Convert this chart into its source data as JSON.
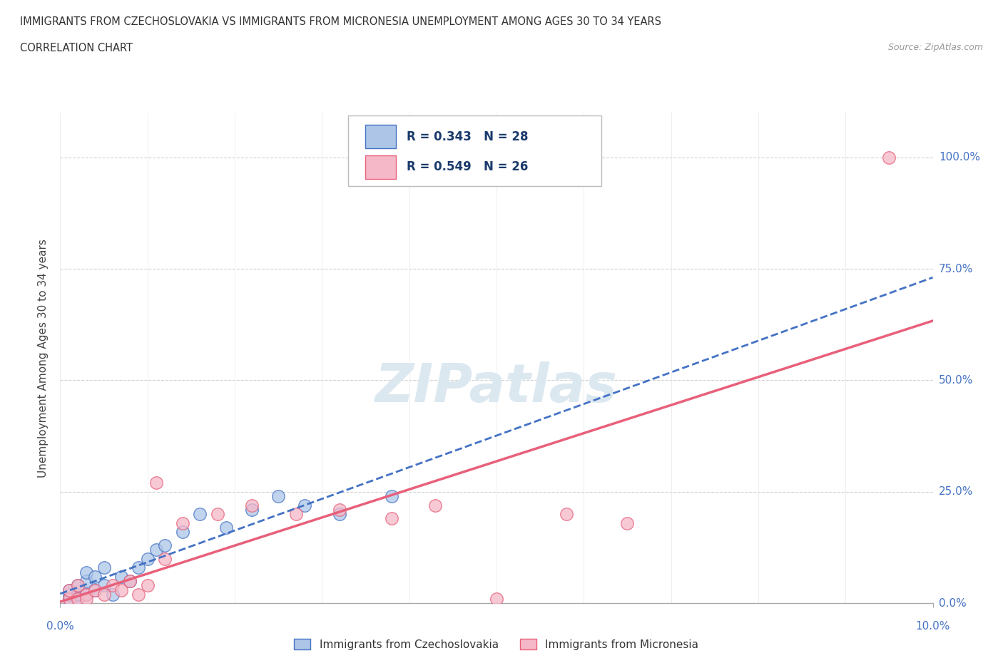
{
  "title_line1": "IMMIGRANTS FROM CZECHOSLOVAKIA VS IMMIGRANTS FROM MICRONESIA UNEMPLOYMENT AMONG AGES 30 TO 34 YEARS",
  "title_line2": "CORRELATION CHART",
  "source_text": "Source: ZipAtlas.com",
  "ylabel": "Unemployment Among Ages 30 to 34 years",
  "xmin": 0.0,
  "xmax": 0.1,
  "ymin": 0.0,
  "ymax": 1.1,
  "yticks": [
    0.0,
    0.25,
    0.5,
    0.75,
    1.0
  ],
  "ytick_labels": [
    "0.0%",
    "25.0%",
    "50.0%",
    "75.0%",
    "100.0%"
  ],
  "legend_r1": "R = 0.343   N = 28",
  "legend_r2": "R = 0.549   N = 26",
  "color_czech": "#adc6e8",
  "color_micronesia": "#f5b8c8",
  "line_color_czech": "#4472c4",
  "line_color_micronesia": "#e8607a",
  "watermark_color": "#dce8f0",
  "background_color": "#ffffff",
  "czech_x": [
    0.001,
    0.001,
    0.001,
    0.002,
    0.002,
    0.002,
    0.003,
    0.003,
    0.003,
    0.004,
    0.004,
    0.005,
    0.005,
    0.006,
    0.007,
    0.008,
    0.009,
    0.01,
    0.011,
    0.012,
    0.014,
    0.016,
    0.019,
    0.022,
    0.025,
    0.028,
    0.032,
    0.038
  ],
  "czech_y": [
    0.01,
    0.02,
    0.03,
    0.01,
    0.02,
    0.04,
    0.02,
    0.05,
    0.07,
    0.03,
    0.06,
    0.04,
    0.08,
    0.02,
    0.06,
    0.05,
    0.08,
    0.1,
    0.12,
    0.13,
    0.16,
    0.2,
    0.17,
    0.21,
    0.24,
    0.22,
    0.2,
    0.24
  ],
  "micronesia_x": [
    0.001,
    0.001,
    0.002,
    0.002,
    0.003,
    0.003,
    0.004,
    0.005,
    0.006,
    0.007,
    0.008,
    0.009,
    0.01,
    0.011,
    0.012,
    0.014,
    0.018,
    0.022,
    0.027,
    0.032,
    0.038,
    0.043,
    0.05,
    0.058,
    0.065,
    0.095
  ],
  "micronesia_y": [
    0.01,
    0.03,
    0.01,
    0.04,
    0.02,
    0.01,
    0.03,
    0.02,
    0.04,
    0.03,
    0.05,
    0.02,
    0.04,
    0.27,
    0.1,
    0.18,
    0.2,
    0.22,
    0.2,
    0.21,
    0.19,
    0.22,
    0.01,
    0.2,
    0.18,
    1.0
  ]
}
